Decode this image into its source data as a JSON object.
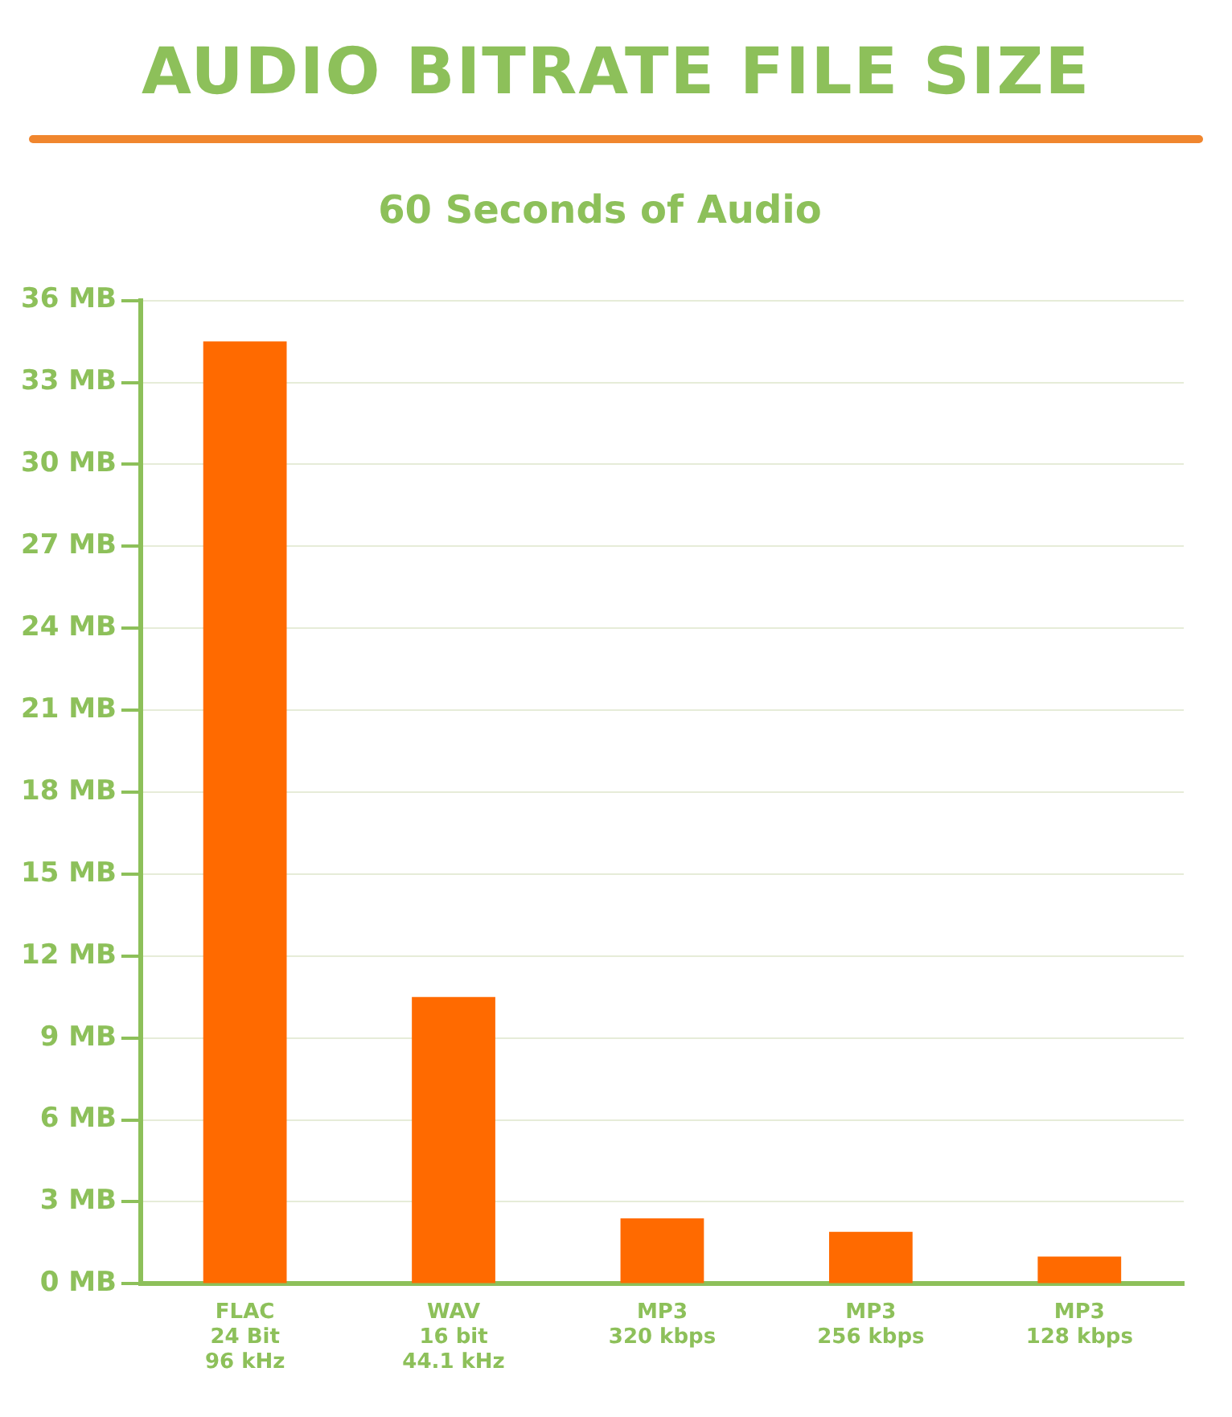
{
  "chart_data": {
    "type": "bar",
    "title": "AUDIO BITRATE FILE SIZE",
    "subtitle": "60 Seconds of Audio",
    "categories": [
      "FLAC\n24 Bit\n96 kHz",
      "WAV\n16 bit\n44.1 kHz",
      "MP3\n320 kbps",
      "MP3\n256 kbps",
      "MP3\n128 kbps"
    ],
    "values": [
      34.5,
      10.5,
      2.4,
      1.9,
      1.0
    ],
    "color": "#ff6a00",
    "ylim": [
      0,
      36
    ],
    "yticks": [
      {
        "value": 0,
        "label": "0 MB"
      },
      {
        "value": 3,
        "label": "3 MB"
      },
      {
        "value": 6,
        "label": "6 MB"
      },
      {
        "value": 9,
        "label": "9 MB"
      },
      {
        "value": 12,
        "label": "12 MB"
      },
      {
        "value": 15,
        "label": "15 MB"
      },
      {
        "value": 18,
        "label": "18 MB"
      },
      {
        "value": 21,
        "label": "21 MB"
      },
      {
        "value": 24,
        "label": "24 MB"
      },
      {
        "value": 27,
        "label": "27 MB"
      },
      {
        "value": 30,
        "label": "30 MB"
      },
      {
        "value": 33,
        "label": "33 MB"
      },
      {
        "value": 36,
        "label": "36 MB"
      }
    ],
    "grid": "y",
    "legend": false
  }
}
